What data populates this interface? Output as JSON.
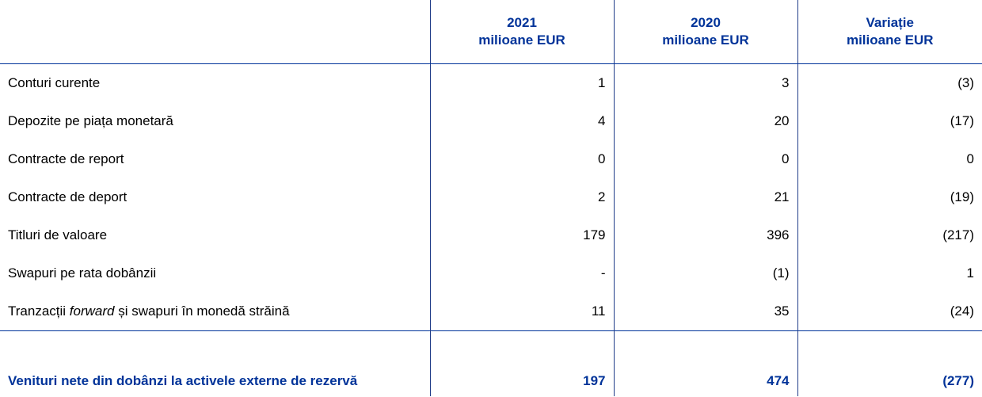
{
  "table": {
    "header": [
      {
        "year": "2021",
        "unit": "milioane EUR"
      },
      {
        "year": "2020",
        "unit": "milioane EUR"
      },
      {
        "year": "Variație",
        "unit": "milioane EUR"
      }
    ],
    "rows": [
      {
        "label": "Conturi curente",
        "cells": [
          "1",
          "3",
          "(3)"
        ]
      },
      {
        "label": "Depozite pe piața monetară",
        "cells": [
          "4",
          "20",
          "(17)"
        ]
      },
      {
        "label": "Contracte de report",
        "cells": [
          "0",
          "0",
          "0"
        ]
      },
      {
        "label": "Contracte de deport",
        "cells": [
          "2",
          "21",
          "(19)"
        ]
      },
      {
        "label": "Titluri de valoare",
        "cells": [
          "179",
          "396",
          "(217)"
        ]
      },
      {
        "label": "Swapuri pe rata dobânzii",
        "cells": [
          "-",
          "(1)",
          "1"
        ]
      },
      {
        "label_parts": [
          "Tranzacții ",
          "forward",
          " și swapuri în monedă străină"
        ],
        "cells": [
          "11",
          "35",
          "(24)"
        ]
      }
    ],
    "total": {
      "label": "Venituri nete din dobânzi la activele externe de rezervă",
      "cells": [
        "197",
        "474",
        "(277)"
      ]
    }
  }
}
